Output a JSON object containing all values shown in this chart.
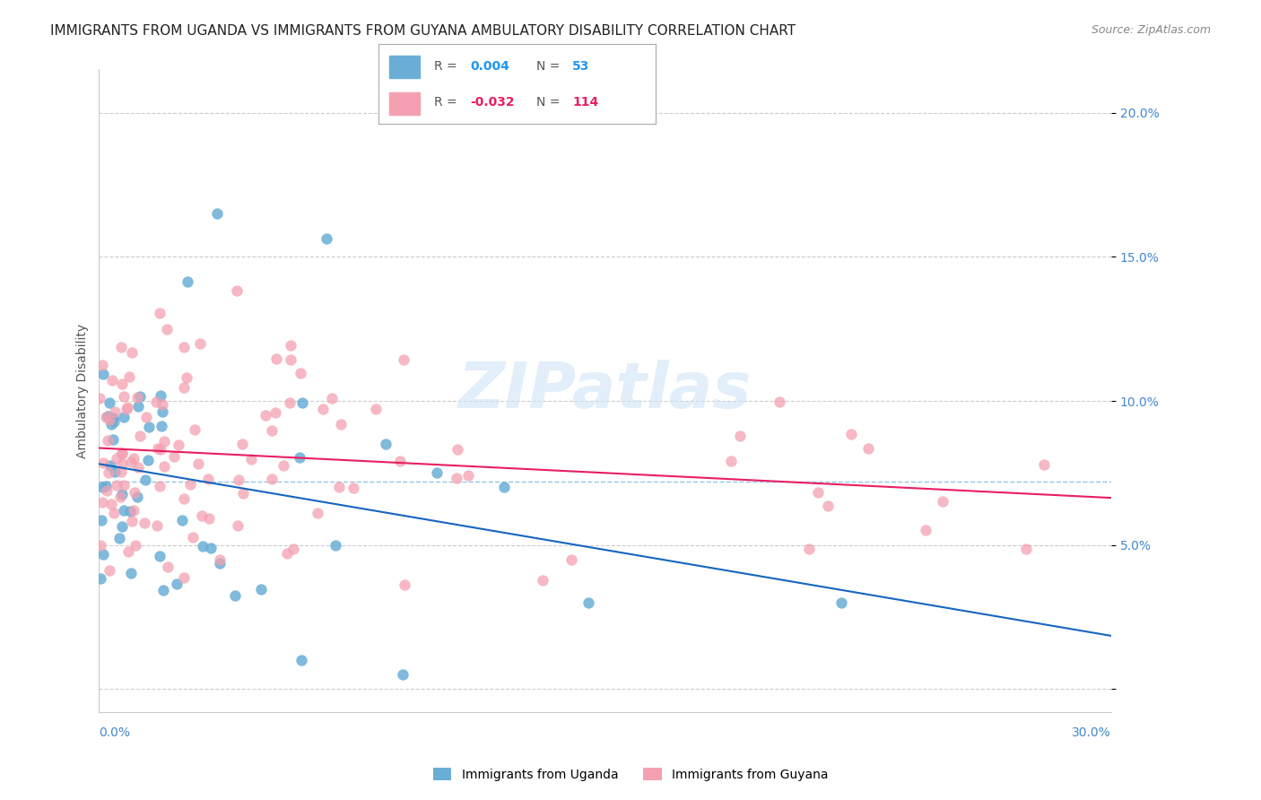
{
  "title": "IMMIGRANTS FROM UGANDA VS IMMIGRANTS FROM GUYANA AMBULATORY DISABILITY CORRELATION CHART",
  "source": "Source: ZipAtlas.com",
  "ylabel": "Ambulatory Disability",
  "yticks": [
    0.0,
    0.05,
    0.1,
    0.15,
    0.2
  ],
  "ytick_labels": [
    "",
    "5.0%",
    "10.0%",
    "15.0%",
    "20.0%"
  ],
  "xlim": [
    0.0,
    0.3
  ],
  "ylim": [
    -0.008,
    0.215
  ],
  "uganda_color": "#6aaed6",
  "guyana_color": "#f4a0b0",
  "uganda_R": 0.004,
  "uganda_N": 53,
  "guyana_R": -0.032,
  "guyana_N": 114,
  "watermark": "ZIPatlas",
  "background_color": "#ffffff",
  "grid_color": "#cccccc",
  "axis_label_color": "#4488cc",
  "title_fontsize": 11,
  "axis_fontsize": 10
}
